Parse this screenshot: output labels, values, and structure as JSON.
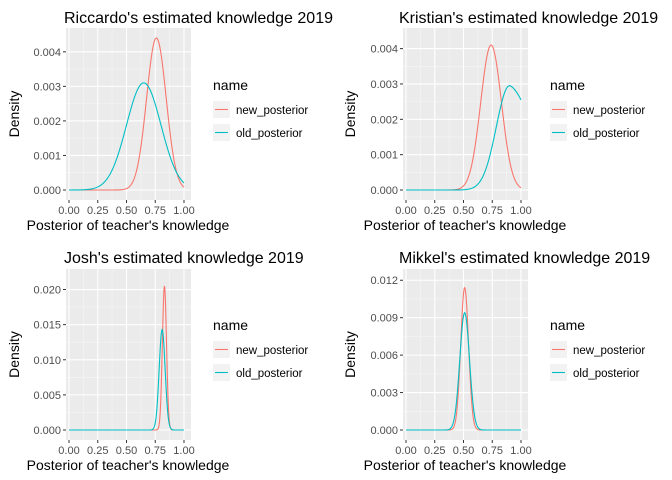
{
  "chart_data": [
    {
      "type": "line",
      "title": "Riccardo's estimated knowledge 2019",
      "xlabel": "Posterior of teacher's knowledge",
      "ylabel": "Density",
      "xlim": [
        0,
        1
      ],
      "ylim": [
        0,
        0.0044
      ],
      "x_ticks": [
        "0.00",
        "0.25",
        "0.50",
        "0.75",
        "1.00"
      ],
      "y_ticks": [
        {
          "value": 0,
          "label": "0.000"
        },
        {
          "value": 0.001,
          "label": "0.001"
        },
        {
          "value": 0.002,
          "label": "0.002"
        },
        {
          "value": 0.003,
          "label": "0.003"
        },
        {
          "value": 0.004,
          "label": "0.004"
        }
      ],
      "legend": {
        "title": "name",
        "position": "right"
      },
      "series": [
        {
          "name": "new_posterior",
          "color": "#F8766D",
          "peak_x": 0.76,
          "peak_y": 0.0044,
          "sd": 0.085,
          "power": 1,
          "end_y": 0
        },
        {
          "name": "old_posterior",
          "color": "#00BFC4",
          "peak_x": 0.65,
          "peak_y": 0.0031,
          "sd": 0.15,
          "power": 1,
          "end_y": 0
        }
      ]
    },
    {
      "type": "line",
      "title": "Kristian's estimated knowledge 2019",
      "xlabel": "Posterior of teacher's knowledge",
      "ylabel": "Density",
      "xlim": [
        0,
        1
      ],
      "ylim": [
        0,
        0.0043
      ],
      "x_ticks": [
        "0.00",
        "0.25",
        "0.50",
        "0.75",
        "1.00"
      ],
      "y_ticks": [
        {
          "value": 0,
          "label": "0.000"
        },
        {
          "value": 0.001,
          "label": "0.001"
        },
        {
          "value": 0.002,
          "label": "0.002"
        },
        {
          "value": 0.003,
          "label": "0.003"
        },
        {
          "value": 0.004,
          "label": "0.004"
        }
      ],
      "legend": {
        "title": "name",
        "position": "right"
      },
      "series": [
        {
          "name": "new_posterior",
          "color": "#F8766D",
          "peak_x": 0.74,
          "peak_y": 0.0041,
          "sd": 0.09,
          "power": 1,
          "end_y": 0
        },
        {
          "name": "old_posterior",
          "color": "#00BFC4",
          "peak_x": 0.9,
          "peak_y": 0.00295,
          "sd": 0.17,
          "power": 2.2,
          "end_y": 0.00255
        }
      ]
    },
    {
      "type": "line",
      "title": "Josh's estimated knowledge 2019",
      "xlabel": "Posterior of teacher's knowledge",
      "ylabel": "Density",
      "xlim": [
        0,
        1
      ],
      "ylim": [
        0,
        0.0215
      ],
      "x_ticks": [
        "0.00",
        "0.25",
        "0.50",
        "0.75",
        "1.00"
      ],
      "y_ticks": [
        {
          "value": 0,
          "label": "0.000"
        },
        {
          "value": 0.005,
          "label": "0.005"
        },
        {
          "value": 0.01,
          "label": "0.010"
        },
        {
          "value": 0.015,
          "label": "0.015"
        },
        {
          "value": 0.02,
          "label": "0.020"
        }
      ],
      "legend": {
        "title": "name",
        "position": "right"
      },
      "series": [
        {
          "name": "new_posterior",
          "color": "#F8766D",
          "peak_x": 0.83,
          "peak_y": 0.0205,
          "sd": 0.018,
          "power": 1,
          "end_y": 0
        },
        {
          "name": "old_posterior",
          "color": "#00BFC4",
          "peak_x": 0.81,
          "peak_y": 0.0143,
          "sd": 0.026,
          "power": 1,
          "end_y": 0
        }
      ]
    },
    {
      "type": "line",
      "title": "Mikkel's estimated knowledge 2019",
      "xlabel": "Posterior of teacher's knowledge",
      "ylabel": "Density",
      "xlim": [
        0,
        1
      ],
      "ylim": [
        0,
        0.0121
      ],
      "x_ticks": [
        "0.00",
        "0.25",
        "0.50",
        "0.75",
        "1.00"
      ],
      "y_ticks": [
        {
          "value": 0,
          "label": "0.000"
        },
        {
          "value": 0.003,
          "label": "0.003"
        },
        {
          "value": 0.006,
          "label": "0.006"
        },
        {
          "value": 0.009,
          "label": "0.009"
        },
        {
          "value": 0.012,
          "label": "0.012"
        }
      ],
      "legend": {
        "title": "name",
        "position": "right"
      },
      "series": [
        {
          "name": "new_posterior",
          "color": "#F8766D",
          "peak_x": 0.51,
          "peak_y": 0.0114,
          "sd": 0.034,
          "power": 1,
          "end_y": 0
        },
        {
          "name": "old_posterior",
          "color": "#00BFC4",
          "peak_x": 0.51,
          "peak_y": 0.0094,
          "sd": 0.042,
          "power": 1,
          "end_y": 0
        }
      ]
    }
  ]
}
